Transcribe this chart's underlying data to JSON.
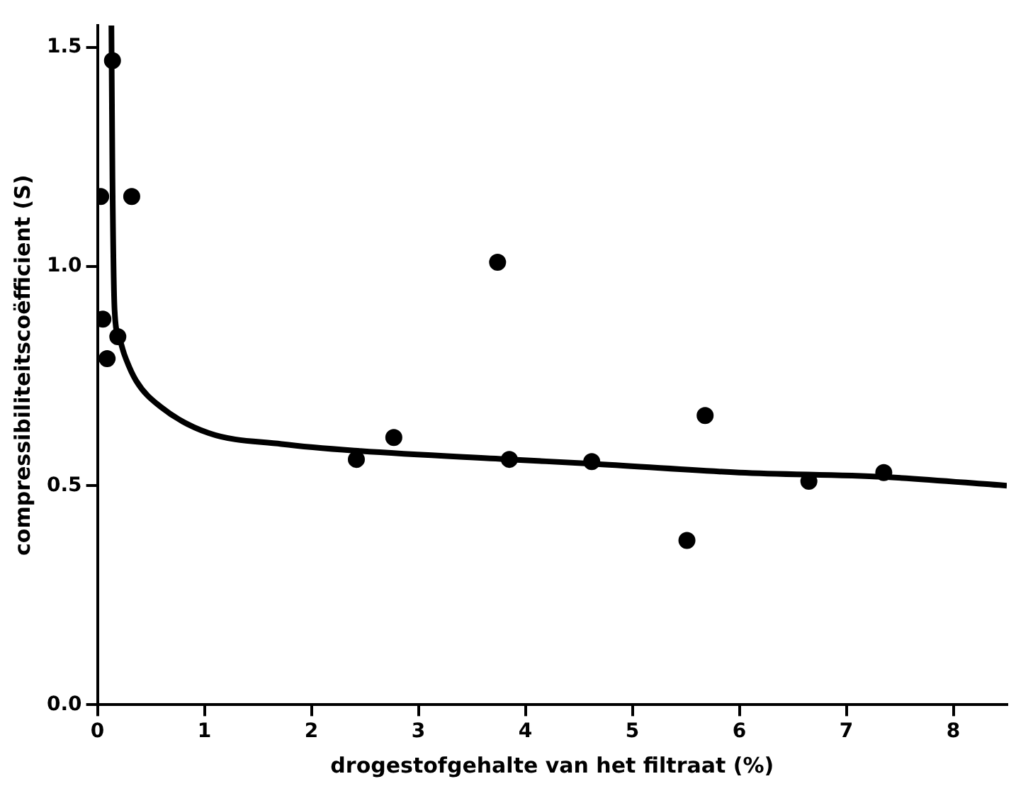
{
  "chart_data": {
    "type": "scatter",
    "xlabel": "drogestofgehalte van het filtraat (%)",
    "ylabel": "compressibiliteitscoëfficient (S)",
    "xlim": [
      0,
      8.5
    ],
    "xticks": [
      0,
      1,
      2,
      3,
      4,
      5,
      6,
      7,
      8
    ],
    "ylim": [
      0,
      1.55
    ],
    "yticks": [
      {
        "value": 0,
        "label": "0.0"
      },
      {
        "value": 0.5,
        "label": "0.5"
      },
      {
        "value": 1,
        "label": "1.0"
      },
      {
        "value": 1.5,
        "label": "1.5"
      }
    ],
    "grid": false,
    "legend": false,
    "series": [
      {
        "color": "#000000",
        "marker": "circle",
        "x": [
          0.14,
          0.03,
          0.32,
          0.05,
          0.19,
          0.09,
          3.74,
          2.77,
          2.42,
          3.85,
          4.62,
          5.68,
          5.51,
          6.65,
          7.35
        ],
        "values": [
          1.47,
          1.16,
          1.16,
          0.88,
          0.84,
          0.79,
          1.01,
          0.61,
          0.56,
          0.56,
          0.555,
          0.66,
          0.375,
          0.51,
          0.53
        ]
      },
      {
        "type": "line",
        "color": "#000000",
        "marker": "none",
        "line_style": "solid",
        "x": [
          0.13,
          0.14,
          0.16,
          0.2,
          0.25,
          0.36,
          0.59,
          1.04,
          1.72,
          2.4,
          3.85,
          4.62,
          6,
          7.35,
          8.5
        ],
        "values": [
          1.55,
          1.2,
          0.9,
          0.84,
          0.8,
          0.74,
          0.68,
          0.62,
          0.595,
          0.58,
          0.56,
          0.55,
          0.53,
          0.52,
          0.5
        ]
      }
    ]
  }
}
